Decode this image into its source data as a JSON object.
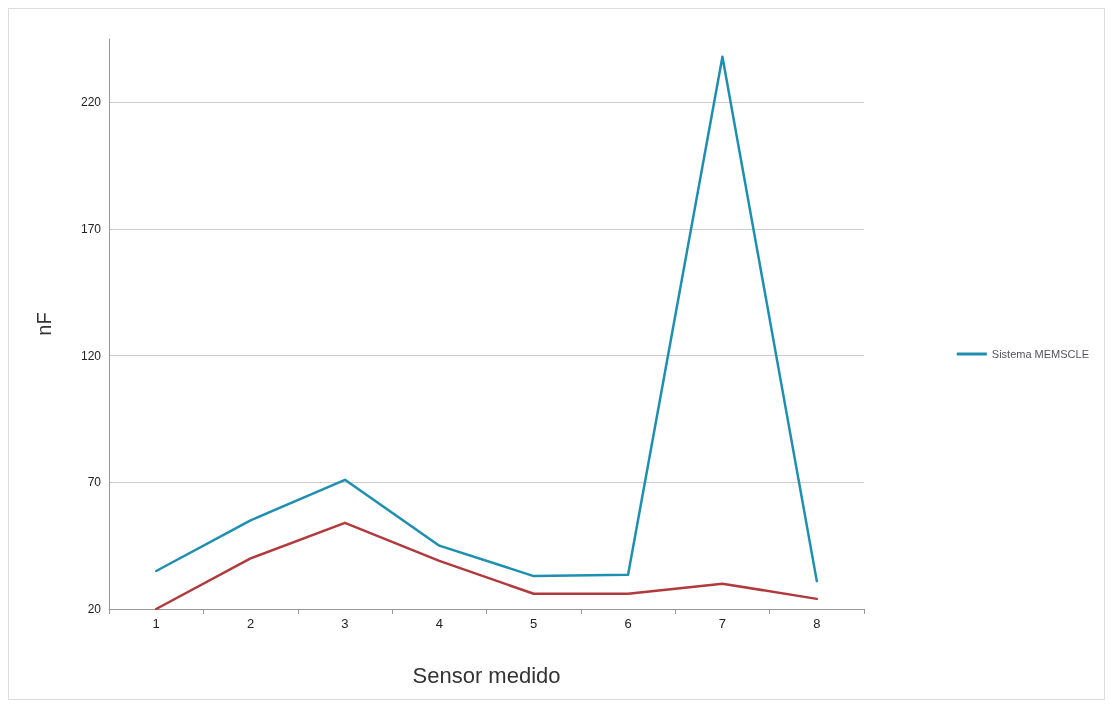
{
  "chart_data": {
    "type": "line",
    "xlabel": "Sensor medido",
    "ylabel": "nF",
    "categories": [
      "1",
      "2",
      "3",
      "4",
      "5",
      "6",
      "7",
      "8"
    ],
    "series": [
      {
        "name": "Sistema MEMSCLE",
        "color": "#1f8fb0",
        "values": [
          35,
          55,
          71,
          45,
          33,
          33.5,
          238,
          31
        ]
      },
      {
        "color": "#b03a3e",
        "values": [
          20,
          40,
          54,
          39,
          26,
          26,
          30,
          24
        ]
      }
    ],
    "ylim": [
      20,
      245
    ],
    "yticks": [
      20,
      70,
      120,
      170,
      220
    ],
    "grid": "y",
    "legend": "right",
    "marker": "none",
    "line_style": "solid"
  }
}
